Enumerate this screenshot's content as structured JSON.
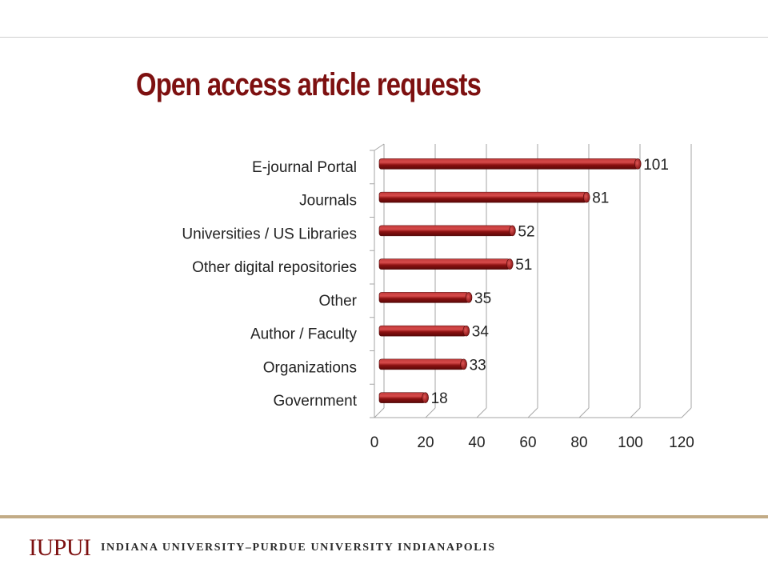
{
  "title": "Open access article requests",
  "footer": {
    "logo": "IUPUI",
    "university": "INDIANA UNIVERSITY–PURDUE UNIVERSITY INDIANAPOLIS"
  },
  "colors": {
    "title": "#7d1010",
    "bar": "#8b1111",
    "bar_highlight": "#d64a4a",
    "footer_rule": "#c2ab86"
  },
  "chart_data": {
    "type": "bar",
    "orientation": "horizontal",
    "categories": [
      "E-journal Portal",
      "Journals",
      "Universities / US Libraries",
      "Other digital repositories",
      "Other",
      "Author / Faculty",
      "Organizations",
      "Government"
    ],
    "values": [
      101,
      81,
      52,
      51,
      35,
      34,
      33,
      18
    ],
    "xlim": [
      0,
      120
    ],
    "xticks": [
      0,
      20,
      40,
      60,
      80,
      100,
      120
    ],
    "grid": true,
    "legend": "none"
  }
}
